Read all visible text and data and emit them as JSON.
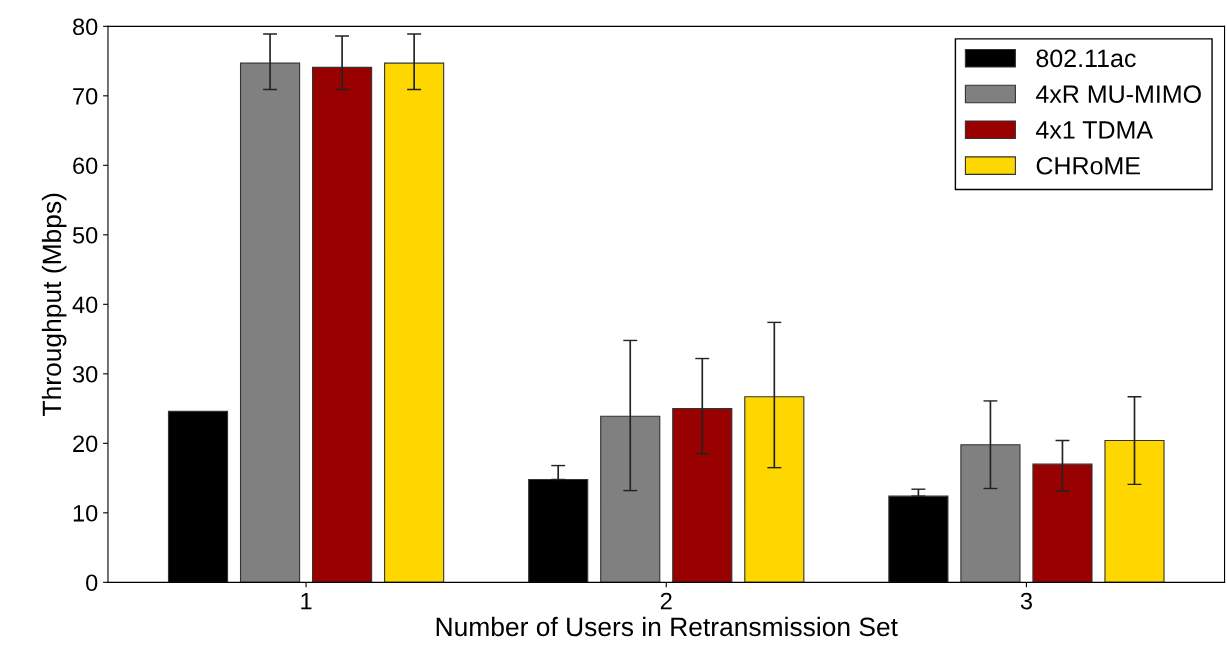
{
  "chart_data": {
    "type": "bar",
    "xlabel": "Number of Users in Retransmission Set",
    "ylabel": "Throughput (Mbps)",
    "categories": [
      "1",
      "2",
      "3"
    ],
    "series": [
      {
        "name": "802.11ac",
        "color": "#000000",
        "values": [
          24.6,
          14.8,
          12.4
        ],
        "errors": [
          null,
          [
            14.8,
            16.8
          ],
          [
            12.4,
            13.4
          ]
        ]
      },
      {
        "name": "4xR MU-MIMO",
        "color": "#808080",
        "values": [
          74.7,
          23.9,
          19.8
        ],
        "errors": [
          [
            70.9,
            78.9
          ],
          [
            13.2,
            34.8
          ],
          [
            13.5,
            26.1
          ]
        ]
      },
      {
        "name": "4x1 TDMA",
        "color": "#990000",
        "values": [
          74.1,
          25.0,
          17.0
        ],
        "errors": [
          [
            70.9,
            78.6
          ],
          [
            18.5,
            32.2
          ],
          [
            13.1,
            20.4
          ]
        ]
      },
      {
        "name": "CHRoME",
        "color": "#ffd700",
        "values": [
          74.7,
          26.7,
          20.4
        ],
        "errors": [
          [
            70.9,
            78.9
          ],
          [
            16.5,
            37.4
          ],
          [
            14.1,
            26.7
          ]
        ]
      }
    ],
    "ylim": [
      0,
      80
    ],
    "yticks": [
      0,
      10,
      20,
      30,
      40,
      50,
      60,
      70,
      80
    ],
    "legend": "top right",
    "grid": false
  }
}
